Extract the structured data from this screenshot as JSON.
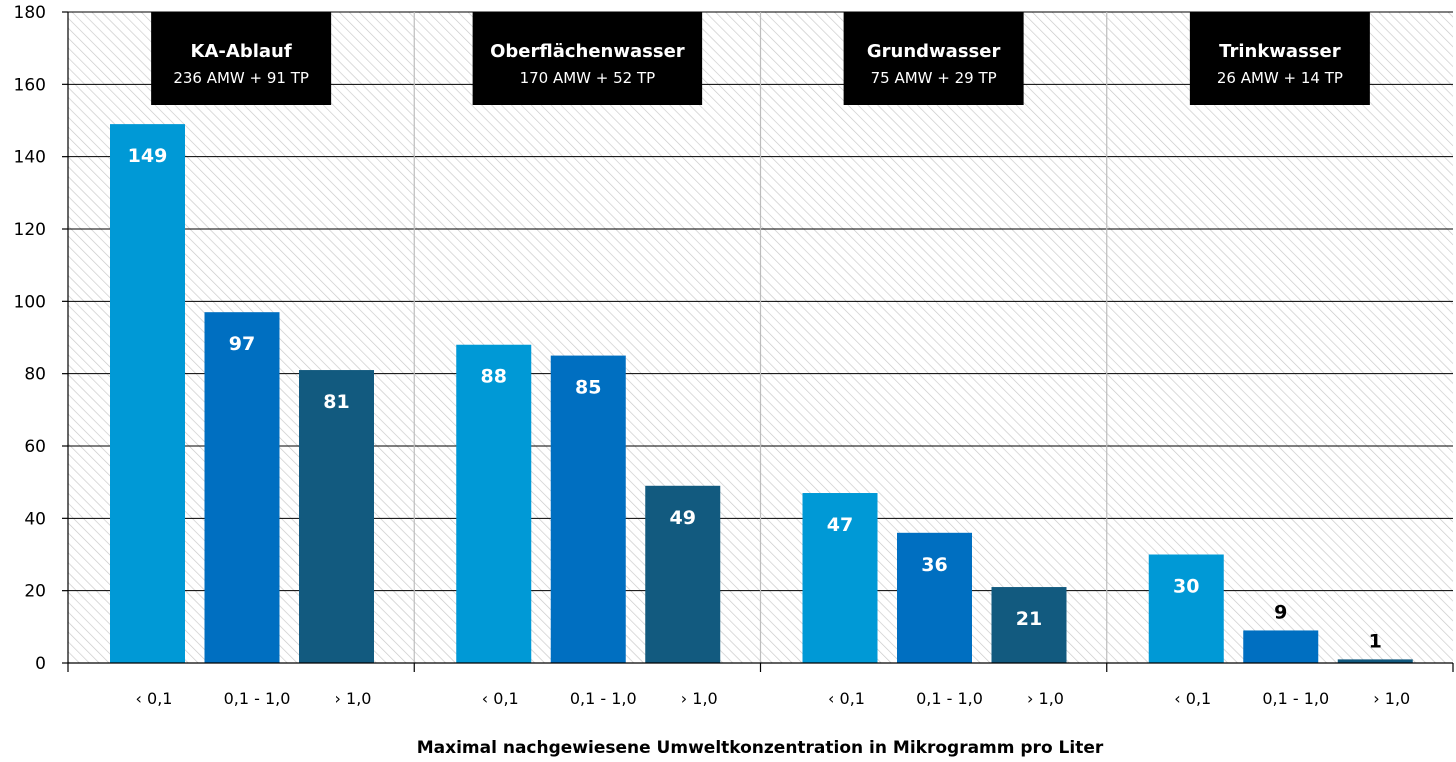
{
  "chart_data": {
    "type": "bar",
    "xlabel": "Maximal nachgewiesene Umweltkonzentration in Mikrogramm pro Liter",
    "ylabel": "",
    "ylim": [
      0,
      180
    ],
    "yticks": [
      "0",
      "20",
      "40",
      "60",
      "80",
      "100",
      "120",
      "140",
      "160",
      "180"
    ],
    "categories": [
      "‹ 0,1",
      "0,1 - 1,0",
      "› 1,0"
    ],
    "grid": true,
    "colors": [
      "#0099d6",
      "#006fc1",
      "#125a7f"
    ],
    "groups": [
      {
        "title": "KA-Ablauf",
        "subtitle": "236 AMW + 91 TP",
        "values": [
          149,
          97,
          81
        ]
      },
      {
        "title": "Oberflächenwasser",
        "subtitle": "170 AMW + 52 TP",
        "values": [
          88,
          85,
          49
        ]
      },
      {
        "title": "Grundwasser",
        "subtitle": "75 AMW + 29 TP",
        "values": [
          47,
          36,
          21
        ]
      },
      {
        "title": "Trinkwasser",
        "subtitle": "26 AMW + 14 TP",
        "values": [
          30,
          9,
          1
        ]
      }
    ]
  }
}
